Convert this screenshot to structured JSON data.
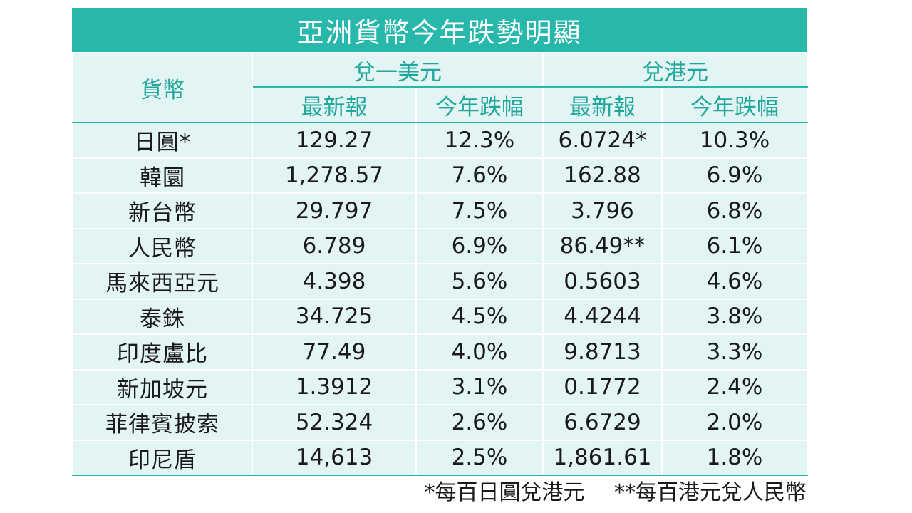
{
  "title": "亞洲貨幣今年跌勢明顯",
  "headers": {
    "currency": "貨幣",
    "usd_group": "兌一美元",
    "hkd_group": "兌港元",
    "latest": "最新報",
    "ytd_drop": "今年跌幅"
  },
  "rows": [
    {
      "currency": "日圓*",
      "usd_latest": "129.27",
      "usd_drop": "12.3%",
      "hkd_latest": "6.0724*",
      "hkd_drop": "10.3%"
    },
    {
      "currency": "韓圜",
      "usd_latest": "1,278.57",
      "usd_drop": "7.6%",
      "hkd_latest": "162.88",
      "hkd_drop": "6.9%"
    },
    {
      "currency": "新台幣",
      "usd_latest": "29.797",
      "usd_drop": "7.5%",
      "hkd_latest": "3.796",
      "hkd_drop": "6.8%"
    },
    {
      "currency": "人民幣",
      "usd_latest": "6.789",
      "usd_drop": "6.9%",
      "hkd_latest": "86.49**",
      "hkd_drop": "6.1%"
    },
    {
      "currency": "馬來西亞元",
      "usd_latest": "4.398",
      "usd_drop": "5.6%",
      "hkd_latest": "0.5603",
      "hkd_drop": "4.6%"
    },
    {
      "currency": "泰銖",
      "usd_latest": "34.725",
      "usd_drop": "4.5%",
      "hkd_latest": "4.4244",
      "hkd_drop": "3.8%"
    },
    {
      "currency": "印度盧比",
      "usd_latest": "77.49",
      "usd_drop": "4.0%",
      "hkd_latest": "9.8713",
      "hkd_drop": "3.3%"
    },
    {
      "currency": "新加坡元",
      "usd_latest": "1.3912",
      "usd_drop": "3.1%",
      "hkd_latest": "0.1772",
      "hkd_drop": "2.4%"
    },
    {
      "currency": "菲律賓披索",
      "usd_latest": "52.324",
      "usd_drop": "2.6%",
      "hkd_latest": "6.6729",
      "hkd_drop": "2.0%"
    },
    {
      "currency": "印尼盾",
      "usd_latest": "14,613",
      "usd_drop": "2.5%",
      "hkd_latest": "1,861.61",
      "hkd_drop": "1.8%"
    }
  ],
  "footnotes": {
    "note1": "*每百日圓兌港元",
    "note2": "**每百港元兌人民幣"
  },
  "colors": {
    "accent": "#27b7ab",
    "header_text": "#1fa89b",
    "table_bg": "#e3f4f4"
  }
}
